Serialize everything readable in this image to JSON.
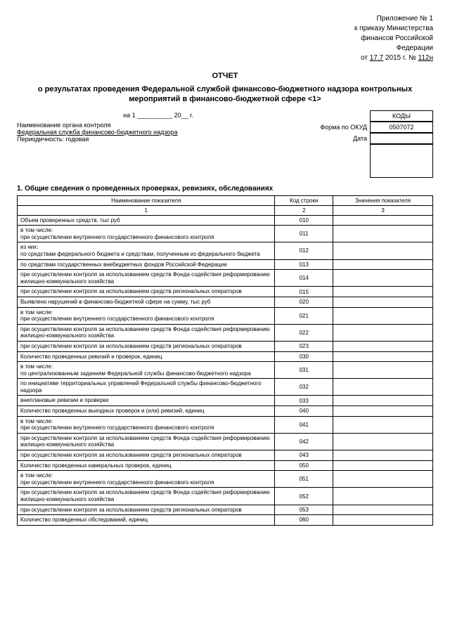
{
  "header": {
    "line1": "Приложение № 1",
    "line2": "к приказу Министерства",
    "line3": "финансов Российской",
    "line4": "Федерации",
    "date_prefix": "от",
    "date_day": "17.7",
    "date_year": "2015 г.",
    "num_prefix": "№",
    "num_value": "112н"
  },
  "title": "ОТЧЕТ",
  "subtitle": "о результатах проведения Федеральной службой финансово-бюджетного надзора контрольных мероприятий в финансово-бюджетной сфере <1>",
  "codes": {
    "label_kody": "КОДЫ",
    "label_okud": "Форма по ОКУД",
    "okud_value": "0507072",
    "date_line": "на 1 __________ 20__ г.",
    "label_data": "Дата"
  },
  "meta": {
    "org_label": "Наименование органа контроля",
    "org_value": "Федеральная служба финансово-бюджетного надзора",
    "period": "Периодичность: годовая"
  },
  "section_heading": "1.  Общие сведения о проведенных проверках, ревизиях, обследованиях",
  "table": {
    "headers": {
      "c1": "Наименование показателя",
      "c2": "Код строки",
      "c3": "Значения показателя"
    },
    "numrow": {
      "c1": "1",
      "c2": "2",
      "c3": "3"
    },
    "rows": [
      {
        "name": "Объем проверенных средств, тыс руб",
        "code": "010"
      },
      {
        "name": "в том числе:\nпри осуществлении внутреннего государственного финансового контроля",
        "code": "011"
      },
      {
        "name": "из них:\nпо средствам федерального бюджета и средствам, полученным из федерального бюджета",
        "code": "012"
      },
      {
        "name": "по средствам государственных внебюджетных фондов Российской Федерации",
        "code": "013"
      },
      {
        "name": "при осуществлении контроля за использованием средств Фонда содействия реформированию жилищно-коммунального хозяйства",
        "code": "014"
      },
      {
        "name": "при осуществлении контроля за использованием средств региональных операторов",
        "code": "015"
      },
      {
        "name": "Выявлено нарушений в финансово-бюджетной сфере на сумму, тыс руб",
        "code": "020"
      },
      {
        "name": "в том числе:\nпри осуществлении внутреннего государственного финансового контроля",
        "code": "021"
      },
      {
        "name": "при осуществлении контроля за использованием средств Фонда содействия реформированию жилищно-коммунального хозяйства",
        "code": "022"
      },
      {
        "name": "при осуществлении контроля за использованием средств региональных операторов",
        "code": "023"
      },
      {
        "name": "Количество проведенных ревизий и проверок, единиц",
        "code": "030"
      },
      {
        "name": "в том числе:\nпо централизованным заданиям Федеральной службы финансово-бюджетного надзора",
        "code": "031"
      },
      {
        "name": "по инициативе территориальных управлений Федеральной службы финансово-бюджетного надзора",
        "code": "032"
      },
      {
        "name": "внеплановые ревизии и проверки",
        "code": "033"
      },
      {
        "name": "Количество проведенных выездных проверок и (или) ревизий, единиц",
        "code": "040"
      },
      {
        "name": "в том числе:\nпри осуществлении внутреннего государственного финансового контроля",
        "code": "041"
      },
      {
        "name": "при осуществлении контроля за использованием средств Фонда содействия реформированию жилищно-коммунального хозяйства",
        "code": "042"
      },
      {
        "name": "при осуществлении контроля за использованием средств региональных операторов",
        "code": "043"
      },
      {
        "name": "Количество проведенных камеральных проверок, единиц",
        "code": "050"
      },
      {
        "name": "в том числе:\nпри осуществлении внутреннего государственного финансового контроля",
        "code": "051"
      },
      {
        "name": "при осуществлении контроля за использованием средств Фонда содействия реформированию жилищно-коммунального хозяйства",
        "code": "052"
      },
      {
        "name": "при осуществлении контроля за использованием средств региональных операторов",
        "code": "053"
      },
      {
        "name": "Количество проведенных обследований, единиц",
        "code": "060"
      }
    ]
  }
}
